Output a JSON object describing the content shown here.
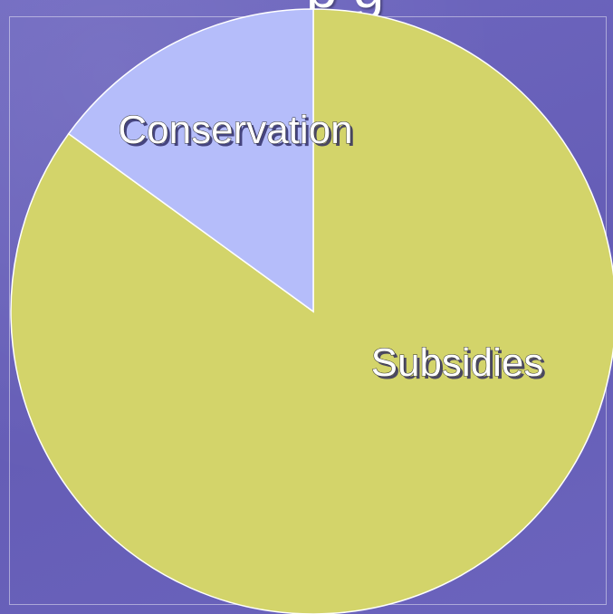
{
  "header": {
    "title_fragment": "p g"
  },
  "chart_data": {
    "type": "pie",
    "title": "",
    "slices": [
      {
        "label": "Subsidies",
        "value": 85,
        "color": "#d3d46a"
      },
      {
        "label": "Conservation",
        "value": 15,
        "color": "#b5bdfa"
      }
    ],
    "start_angle_deg": 0,
    "direction": "clockwise",
    "legend": "none"
  }
}
